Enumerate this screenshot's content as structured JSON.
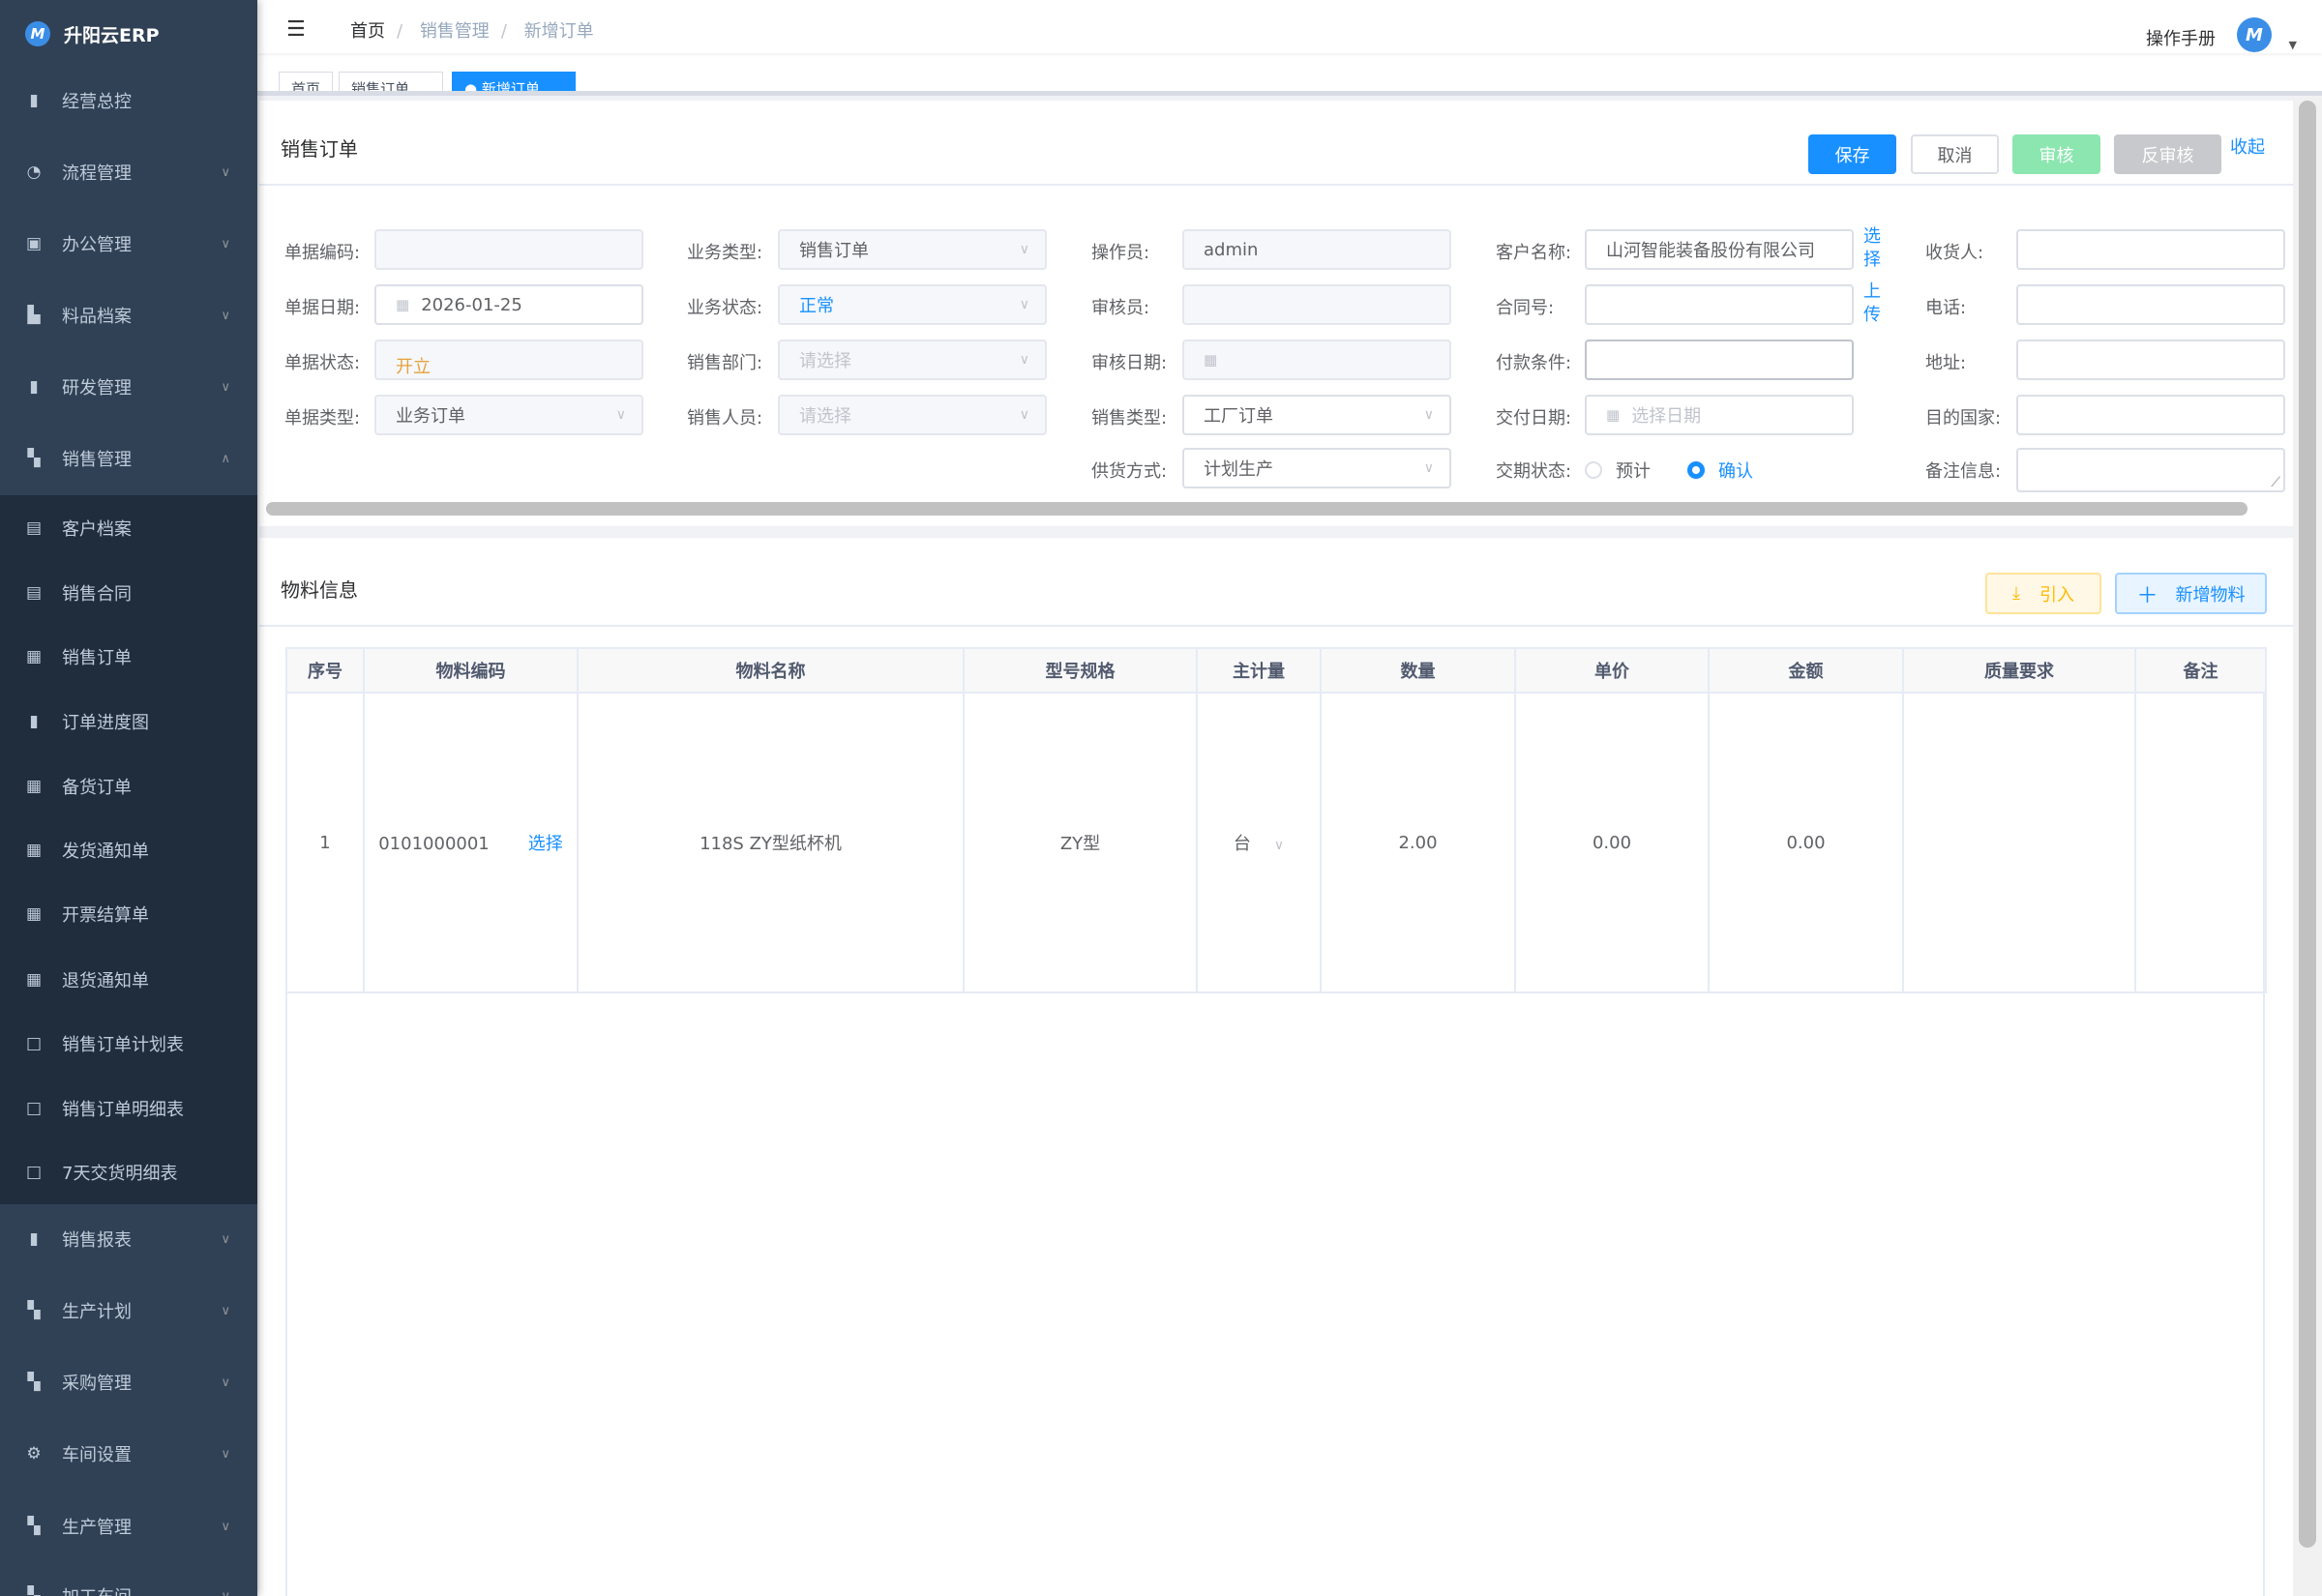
{
  "app": {
    "name": "升阳云ERP",
    "logo_text": "M"
  },
  "sidebar": {
    "items": [
      {
        "label": "经营总控",
        "icon": "bar-chart-icon",
        "glyph": "▮",
        "chevron": false,
        "sub": false
      },
      {
        "label": "流程管理",
        "icon": "flow-icon",
        "glyph": "◔",
        "chevron": "down",
        "sub": false
      },
      {
        "label": "办公管理",
        "icon": "office-icon",
        "glyph": "▣",
        "chevron": "down",
        "sub": false
      },
      {
        "label": "料品档案",
        "icon": "book-icon",
        "glyph": "▙",
        "chevron": "down",
        "sub": false
      },
      {
        "label": "研发管理",
        "icon": "research-icon",
        "glyph": "▮",
        "chevron": "down",
        "sub": false
      },
      {
        "label": "销售管理",
        "icon": "document-icon",
        "glyph": "▚",
        "chevron": "up",
        "sub": false
      },
      {
        "label": "客户档案",
        "icon": "file-icon",
        "glyph": "▤",
        "chevron": false,
        "sub": true
      },
      {
        "label": "销售合同",
        "icon": "file-icon",
        "glyph": "▤",
        "chevron": false,
        "sub": true
      },
      {
        "label": "销售订单",
        "icon": "grid-icon",
        "glyph": "▦",
        "chevron": false,
        "sub": true
      },
      {
        "label": "订单进度图",
        "icon": "bar-chart-icon",
        "glyph": "▮",
        "chevron": false,
        "sub": true
      },
      {
        "label": "备货订单",
        "icon": "grid-icon",
        "glyph": "▦",
        "chevron": false,
        "sub": true
      },
      {
        "label": "发货通知单",
        "icon": "grid-icon",
        "glyph": "▦",
        "chevron": false,
        "sub": true
      },
      {
        "label": "开票结算单",
        "icon": "grid-icon",
        "glyph": "▦",
        "chevron": false,
        "sub": true
      },
      {
        "label": "退货通知单",
        "icon": "grid-icon",
        "glyph": "▦",
        "chevron": false,
        "sub": true
      },
      {
        "label": "销售订单计划表",
        "icon": "book-open-icon",
        "glyph": "□",
        "chevron": false,
        "sub": true
      },
      {
        "label": "销售订单明细表",
        "icon": "book-open-icon",
        "glyph": "□",
        "chevron": false,
        "sub": true
      },
      {
        "label": "7天交货明细表",
        "icon": "book-open-icon",
        "glyph": "□",
        "chevron": false,
        "sub": true
      },
      {
        "label": "销售报表",
        "icon": "bar-chart-icon",
        "glyph": "▮",
        "chevron": "down",
        "sub": false
      },
      {
        "label": "生产计划",
        "icon": "document-icon",
        "glyph": "▚",
        "chevron": "down",
        "sub": false
      },
      {
        "label": "采购管理",
        "icon": "document-icon",
        "glyph": "▚",
        "chevron": "down",
        "sub": false
      },
      {
        "label": "车间设置",
        "icon": "gear-icon",
        "glyph": "⚙",
        "chevron": "down",
        "sub": false
      },
      {
        "label": "生产管理",
        "icon": "document-icon",
        "glyph": "▚",
        "chevron": "down",
        "sub": false
      },
      {
        "label": "加工车间",
        "icon": "document-icon",
        "glyph": "▚",
        "chevron": "down",
        "sub": false
      }
    ]
  },
  "header": {
    "breadcrumb": [
      "首页",
      "销售管理",
      "新增订单"
    ],
    "separator": "/",
    "manual": "操作手册",
    "avatar_text": "M"
  },
  "tabs": [
    {
      "label": "首页"
    },
    {
      "label": "销售订单"
    },
    {
      "label": "● 新增订单",
      "active": true
    }
  ],
  "order": {
    "title": "销售订单",
    "buttons": {
      "save": "保存",
      "cancel": "取消",
      "audit": "审核",
      "unaudit": "反审核",
      "collapse": "收起"
    },
    "columns": [
      [
        {
          "label": "单据编码:",
          "value": "",
          "style": "dis"
        },
        {
          "label": "单据日期:",
          "value": "2026-01-25",
          "type": "date"
        },
        {
          "label": "单据状态:",
          "value": "开立",
          "style": "dis",
          "color": "#e6a23c"
        },
        {
          "label": "单据类型:",
          "value": "业务订单",
          "style": "dis",
          "type": "select"
        }
      ],
      [
        {
          "label": "业务类型:",
          "value": "销售订单",
          "style": "dis",
          "type": "select"
        },
        {
          "label": "业务状态:",
          "value": "正常",
          "style": "dis",
          "type": "select",
          "color": "#1890ff"
        },
        {
          "label": "销售部门:",
          "placeholder": "请选择",
          "style": "dis",
          "type": "select"
        },
        {
          "label": "销售人员:",
          "placeholder": "请选择",
          "style": "dis",
          "type": "select"
        }
      ],
      [
        {
          "label": "操作员:",
          "value": "admin",
          "style": "dis"
        },
        {
          "label": "审核员:",
          "value": "",
          "style": "dis"
        },
        {
          "label": "审核日期:",
          "value": "",
          "style": "dis",
          "type": "date"
        },
        {
          "label": "销售类型:",
          "value": "工厂订单",
          "type": "select"
        },
        {
          "label": "供货方式:",
          "value": "计划生产",
          "type": "select"
        }
      ],
      [
        {
          "label": "客户名称:",
          "value": "山河智能装备股份有限公司",
          "link": "选择"
        },
        {
          "label": "合同号:",
          "value": "",
          "link": "上传"
        },
        {
          "label": "付款条件:",
          "value": "",
          "style": "strong"
        },
        {
          "label": "交付日期:",
          "placeholder": "选择日期",
          "type": "date"
        },
        {
          "label": "交期状态:",
          "type": "radio",
          "options": [
            "预计",
            "确认"
          ],
          "selected": "确认"
        }
      ],
      [
        {
          "label": "收货人:",
          "value": ""
        },
        {
          "label": "电话:",
          "value": ""
        },
        {
          "label": "地址:",
          "value": ""
        },
        {
          "label": "目的国家:",
          "value": ""
        },
        {
          "label": "备注信息:",
          "value": "",
          "type": "textarea"
        }
      ]
    ]
  },
  "materials": {
    "title": "物料信息",
    "buttons": {
      "import": "引入",
      "add": "新增物料"
    },
    "headers": [
      "序号",
      "物料编码",
      "物料名称",
      "型号规格",
      "主计量",
      "数量",
      "单价",
      "金额",
      "质量要求",
      "备注"
    ],
    "rows": [
      {
        "index": "1",
        "code": "0101000001",
        "select": "选择",
        "name": "118S ZY型纸杯机",
        "spec": "ZY型",
        "unit": "台",
        "qty": "2.00",
        "price": "0.00",
        "amount": "0.00",
        "quality": "",
        "remark": ""
      }
    ]
  },
  "colors": {
    "primary": "#1890ff",
    "sidebar": "#304156",
    "audit": "#8ce6b0",
    "unaudit": "#c8c9cc",
    "import": "#ffba00"
  }
}
